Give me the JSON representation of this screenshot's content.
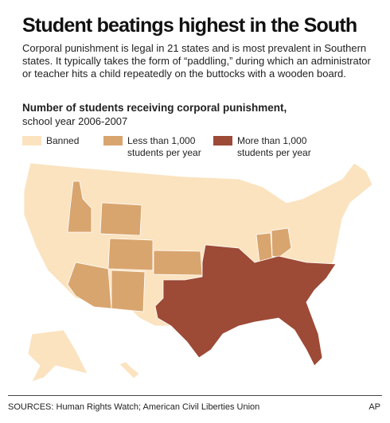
{
  "header": {
    "title": "Student beatings highest in the South",
    "intro": "Corporal punishment is legal in 21 states and is most prevalent in Southern states. It typically takes the form of “paddling,” during which an administrator or teacher hits a child repeatedly on the buttocks with a wooden board."
  },
  "map": {
    "title": "Number of students receiving corporal punishment,",
    "subtitle": "school year 2006-2007",
    "legend": [
      {
        "label": "Banned",
        "color": "#fbe3c0"
      },
      {
        "label": "Less than 1,000 students per year",
        "color": "#d9a56e"
      },
      {
        "label": "More than 1,000 students per year",
        "color": "#9d4a36"
      }
    ]
  },
  "footer": {
    "sources": "SOURCES: Human Rights Watch; American Civil Liberties Union",
    "credit": "AP"
  }
}
